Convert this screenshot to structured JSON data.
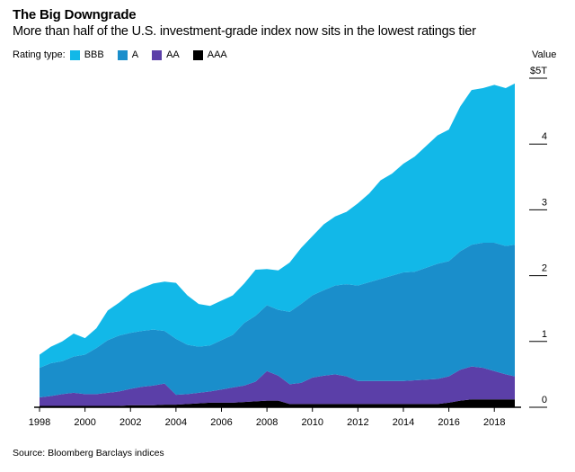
{
  "chart_data": {
    "type": "area",
    "stacked": true,
    "title": "The Big Downgrade",
    "subtitle": "More than half of the U.S. investment-grade index now sits in the lowest ratings tier",
    "legend_title": "Rating type:",
    "ylabel": "Value",
    "source": "Source: Bloomberg Barclays indices",
    "ylim": [
      0,
      5
    ],
    "xlim": [
      1998,
      2018.9
    ],
    "x_ticks": [
      "1998",
      "2000",
      "2002",
      "2004",
      "2006",
      "2008",
      "2010",
      "2012",
      "2014",
      "2016",
      "2018"
    ],
    "y_ticks": [
      {
        "value": 0,
        "label": "0"
      },
      {
        "value": 1,
        "label": "1"
      },
      {
        "value": 2,
        "label": "2"
      },
      {
        "value": 3,
        "label": "3"
      },
      {
        "value": 4,
        "label": "4"
      },
      {
        "value": 5,
        "label": "$5T"
      }
    ],
    "x": [
      1998,
      1998.5,
      1999,
      1999.5,
      2000,
      2000.5,
      2001,
      2001.5,
      2002,
      2002.5,
      2003,
      2003.5,
      2004,
      2004.5,
      2005,
      2005.5,
      2006,
      2006.5,
      2007,
      2007.5,
      2008,
      2008.5,
      2009,
      2009.5,
      2010,
      2010.5,
      2011,
      2011.5,
      2012,
      2012.5,
      2013,
      2013.5,
      2014,
      2014.5,
      2015,
      2015.5,
      2016,
      2016.5,
      2017,
      2017.5,
      2018,
      2018.5,
      2018.9
    ],
    "series": [
      {
        "name": "AAA",
        "color": "#000000",
        "values": [
          0.02,
          0.02,
          0.02,
          0.02,
          0.02,
          0.02,
          0.02,
          0.02,
          0.03,
          0.03,
          0.03,
          0.04,
          0.04,
          0.05,
          0.06,
          0.07,
          0.07,
          0.07,
          0.08,
          0.09,
          0.1,
          0.1,
          0.05,
          0.05,
          0.05,
          0.05,
          0.05,
          0.05,
          0.05,
          0.05,
          0.05,
          0.05,
          0.05,
          0.05,
          0.05,
          0.05,
          0.07,
          0.1,
          0.12,
          0.12,
          0.12,
          0.12,
          0.12
        ]
      },
      {
        "name": "AA",
        "color": "#5b3fa8",
        "values": [
          0.13,
          0.15,
          0.18,
          0.2,
          0.18,
          0.18,
          0.2,
          0.22,
          0.25,
          0.28,
          0.3,
          0.32,
          0.15,
          0.15,
          0.16,
          0.17,
          0.2,
          0.23,
          0.25,
          0.3,
          0.45,
          0.38,
          0.3,
          0.32,
          0.4,
          0.43,
          0.45,
          0.42,
          0.35,
          0.35,
          0.35,
          0.35,
          0.35,
          0.36,
          0.37,
          0.38,
          0.4,
          0.47,
          0.5,
          0.48,
          0.43,
          0.38,
          0.35
        ]
      },
      {
        "name": "A",
        "color": "#1a8ecb",
        "values": [
          0.45,
          0.5,
          0.5,
          0.55,
          0.6,
          0.7,
          0.8,
          0.85,
          0.85,
          0.85,
          0.85,
          0.8,
          0.85,
          0.75,
          0.7,
          0.7,
          0.75,
          0.8,
          0.95,
          1.0,
          1.0,
          1.0,
          1.1,
          1.2,
          1.25,
          1.3,
          1.35,
          1.4,
          1.45,
          1.5,
          1.55,
          1.6,
          1.65,
          1.65,
          1.7,
          1.75,
          1.75,
          1.8,
          1.85,
          1.9,
          1.95,
          1.95,
          2.0
        ]
      },
      {
        "name": "BBB",
        "color": "#12b8e8",
        "values": [
          0.2,
          0.25,
          0.3,
          0.35,
          0.25,
          0.3,
          0.45,
          0.5,
          0.6,
          0.65,
          0.7,
          0.75,
          0.85,
          0.75,
          0.65,
          0.6,
          0.6,
          0.6,
          0.6,
          0.7,
          0.55,
          0.6,
          0.75,
          0.85,
          0.9,
          1.0,
          1.05,
          1.1,
          1.25,
          1.35,
          1.5,
          1.55,
          1.65,
          1.75,
          1.85,
          1.95,
          2.0,
          2.2,
          2.35,
          2.35,
          2.4,
          2.4,
          2.45
        ]
      }
    ]
  },
  "colors": {
    "axis": "#000000",
    "gridline": "#000000"
  }
}
